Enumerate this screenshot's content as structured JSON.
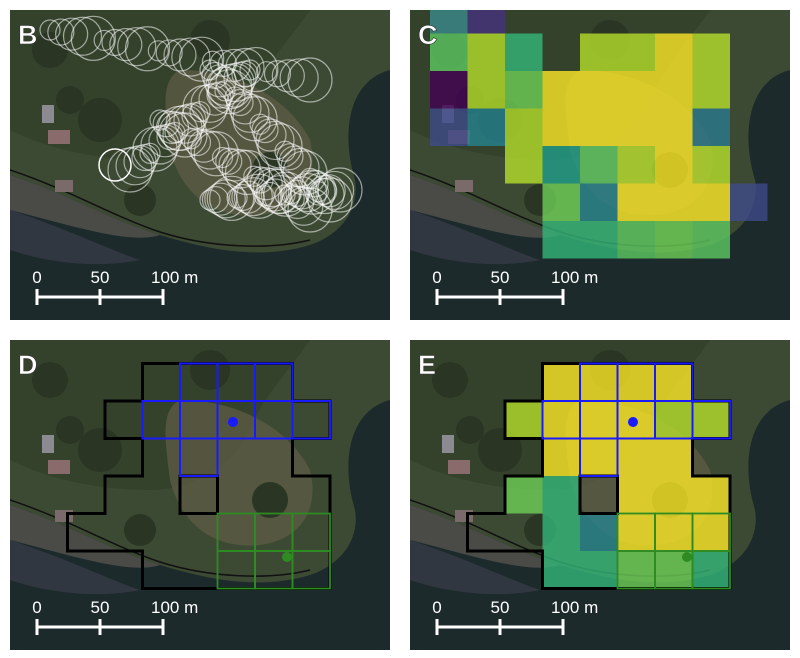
{
  "panels": [
    {
      "label": "B",
      "scale_bar": [
        "0",
        "50",
        "100 m"
      ]
    },
    {
      "label": "C",
      "scale_bar": [
        "0",
        "50",
        "100 m"
      ]
    },
    {
      "label": "D",
      "scale_bar": [
        "0",
        "50",
        "100 m"
      ]
    },
    {
      "label": "E",
      "scale_bar": [
        "0",
        "50",
        "100 m"
      ]
    }
  ]
}
